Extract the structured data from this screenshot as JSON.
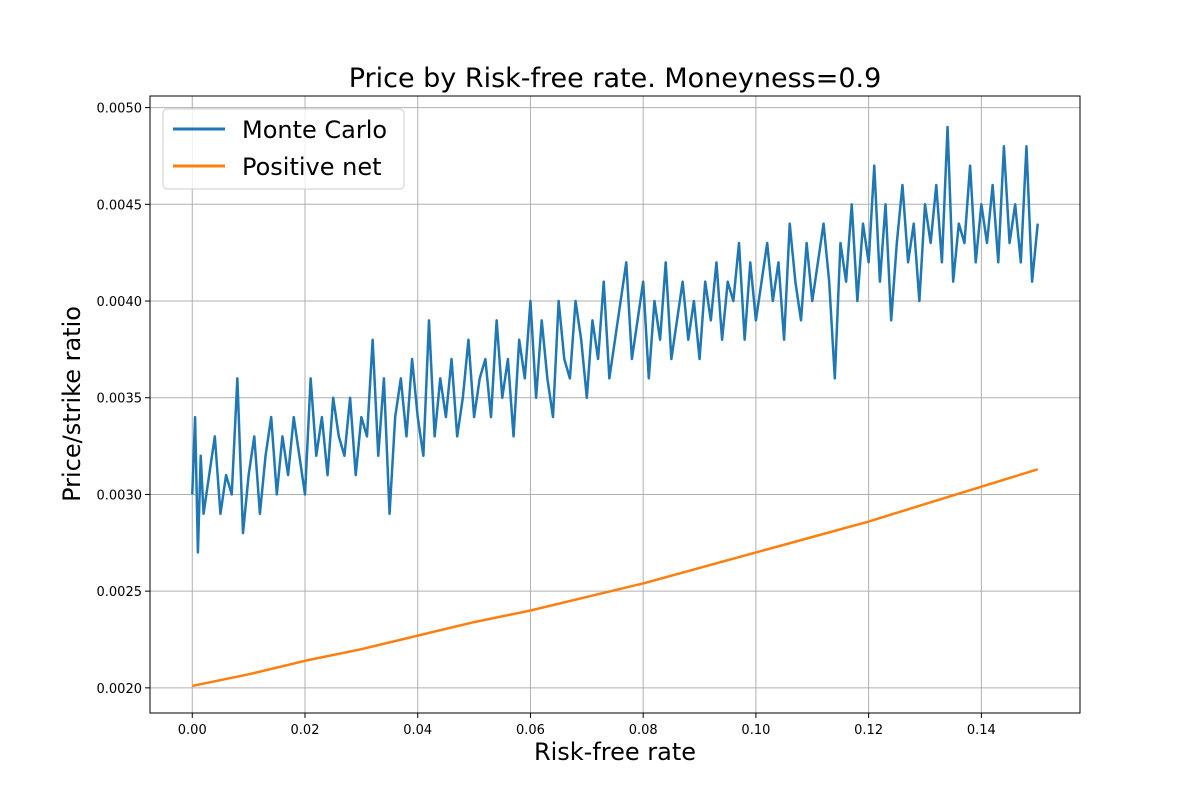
{
  "chart_data": {
    "type": "line",
    "title": "Price by Risk-free rate. Moneyness=0.9",
    "xlabel": "Risk-free rate",
    "ylabel": "Price/strike ratio",
    "xlim": [
      -0.0075,
      0.1575
    ],
    "ylim": [
      0.00187,
      0.00506
    ],
    "x_ticks": [
      0.0,
      0.02,
      0.04,
      0.06,
      0.08,
      0.1,
      0.12,
      0.14
    ],
    "x_tick_labels": [
      "0.00",
      "0.02",
      "0.04",
      "0.06",
      "0.08",
      "0.10",
      "0.12",
      "0.14"
    ],
    "y_ticks": [
      0.002,
      0.0025,
      0.003,
      0.0035,
      0.004,
      0.0045,
      0.005
    ],
    "y_tick_labels": [
      "0.0020",
      "0.0025",
      "0.0030",
      "0.0035",
      "0.0040",
      "0.0045",
      "0.0050"
    ],
    "grid": true,
    "legend_position": "top-left",
    "series": [
      {
        "name": "Monte Carlo",
        "color": "#1f77b4",
        "x": [
          0.0,
          0.0005,
          0.001,
          0.0015,
          0.002,
          0.003,
          0.004,
          0.005,
          0.006,
          0.007,
          0.008,
          0.009,
          0.01,
          0.011,
          0.012,
          0.013,
          0.014,
          0.015,
          0.016,
          0.017,
          0.018,
          0.019,
          0.02,
          0.021,
          0.022,
          0.023,
          0.024,
          0.025,
          0.026,
          0.027,
          0.028,
          0.029,
          0.03,
          0.031,
          0.032,
          0.033,
          0.034,
          0.035,
          0.036,
          0.037,
          0.038,
          0.039,
          0.04,
          0.041,
          0.042,
          0.043,
          0.044,
          0.045,
          0.046,
          0.047,
          0.048,
          0.049,
          0.05,
          0.051,
          0.052,
          0.053,
          0.054,
          0.055,
          0.056,
          0.057,
          0.058,
          0.059,
          0.06,
          0.061,
          0.062,
          0.063,
          0.064,
          0.065,
          0.066,
          0.067,
          0.068,
          0.069,
          0.07,
          0.071,
          0.072,
          0.073,
          0.074,
          0.075,
          0.076,
          0.077,
          0.078,
          0.079,
          0.08,
          0.081,
          0.082,
          0.083,
          0.084,
          0.085,
          0.086,
          0.087,
          0.088,
          0.089,
          0.09,
          0.091,
          0.092,
          0.093,
          0.094,
          0.095,
          0.096,
          0.097,
          0.098,
          0.099,
          0.1,
          0.101,
          0.102,
          0.103,
          0.104,
          0.105,
          0.106,
          0.107,
          0.108,
          0.109,
          0.11,
          0.111,
          0.112,
          0.113,
          0.114,
          0.115,
          0.116,
          0.117,
          0.118,
          0.119,
          0.12,
          0.121,
          0.122,
          0.123,
          0.124,
          0.125,
          0.126,
          0.127,
          0.128,
          0.129,
          0.13,
          0.131,
          0.132,
          0.133,
          0.134,
          0.135,
          0.136,
          0.137,
          0.138,
          0.139,
          0.14,
          0.141,
          0.142,
          0.143,
          0.144,
          0.145,
          0.146,
          0.147,
          0.148,
          0.149,
          0.15
        ],
        "values": [
          0.003,
          0.0034,
          0.0027,
          0.0032,
          0.0029,
          0.0031,
          0.0033,
          0.0029,
          0.0031,
          0.003,
          0.0036,
          0.0028,
          0.0031,
          0.0033,
          0.0029,
          0.0032,
          0.0034,
          0.003,
          0.0033,
          0.0031,
          0.0034,
          0.0032,
          0.003,
          0.0036,
          0.0032,
          0.0034,
          0.0031,
          0.0035,
          0.0033,
          0.0032,
          0.0035,
          0.0031,
          0.0034,
          0.0033,
          0.0038,
          0.0032,
          0.0036,
          0.0029,
          0.0034,
          0.0036,
          0.0033,
          0.0037,
          0.0034,
          0.0032,
          0.0039,
          0.0033,
          0.0036,
          0.0034,
          0.0037,
          0.0033,
          0.0035,
          0.0038,
          0.0034,
          0.0036,
          0.0037,
          0.0034,
          0.0039,
          0.0035,
          0.0037,
          0.0033,
          0.0038,
          0.0036,
          0.004,
          0.0035,
          0.0039,
          0.0036,
          0.0034,
          0.004,
          0.0037,
          0.0036,
          0.004,
          0.0038,
          0.0035,
          0.0039,
          0.0037,
          0.0041,
          0.0036,
          0.0038,
          0.004,
          0.0042,
          0.0037,
          0.0039,
          0.0041,
          0.0036,
          0.004,
          0.0038,
          0.0042,
          0.0037,
          0.0039,
          0.0041,
          0.0038,
          0.004,
          0.0037,
          0.0041,
          0.0039,
          0.0042,
          0.0038,
          0.0041,
          0.004,
          0.0043,
          0.0038,
          0.0042,
          0.0039,
          0.0041,
          0.0043,
          0.004,
          0.0042,
          0.0038,
          0.0044,
          0.0041,
          0.0039,
          0.0043,
          0.004,
          0.0042,
          0.0044,
          0.0041,
          0.0036,
          0.0043,
          0.0041,
          0.0045,
          0.004,
          0.0044,
          0.0042,
          0.0047,
          0.0041,
          0.0045,
          0.0039,
          0.0043,
          0.0046,
          0.0042,
          0.0044,
          0.004,
          0.0045,
          0.0043,
          0.0046,
          0.0042,
          0.0049,
          0.0041,
          0.0044,
          0.0043,
          0.0047,
          0.0042,
          0.0045,
          0.0043,
          0.0046,
          0.0042,
          0.0048,
          0.0043,
          0.0045,
          0.0042,
          0.0048,
          0.0041,
          0.0044
        ]
      },
      {
        "name": "Positive net",
        "color": "#ff7f0e",
        "x": [
          0.0,
          0.01,
          0.02,
          0.03,
          0.04,
          0.05,
          0.06,
          0.07,
          0.08,
          0.09,
          0.1,
          0.11,
          0.12,
          0.13,
          0.14,
          0.15
        ],
        "values": [
          0.00201,
          0.00207,
          0.00214,
          0.0022,
          0.00227,
          0.00234,
          0.0024,
          0.00247,
          0.00254,
          0.00262,
          0.0027,
          0.00278,
          0.00286,
          0.00295,
          0.00304,
          0.00313
        ]
      }
    ]
  }
}
